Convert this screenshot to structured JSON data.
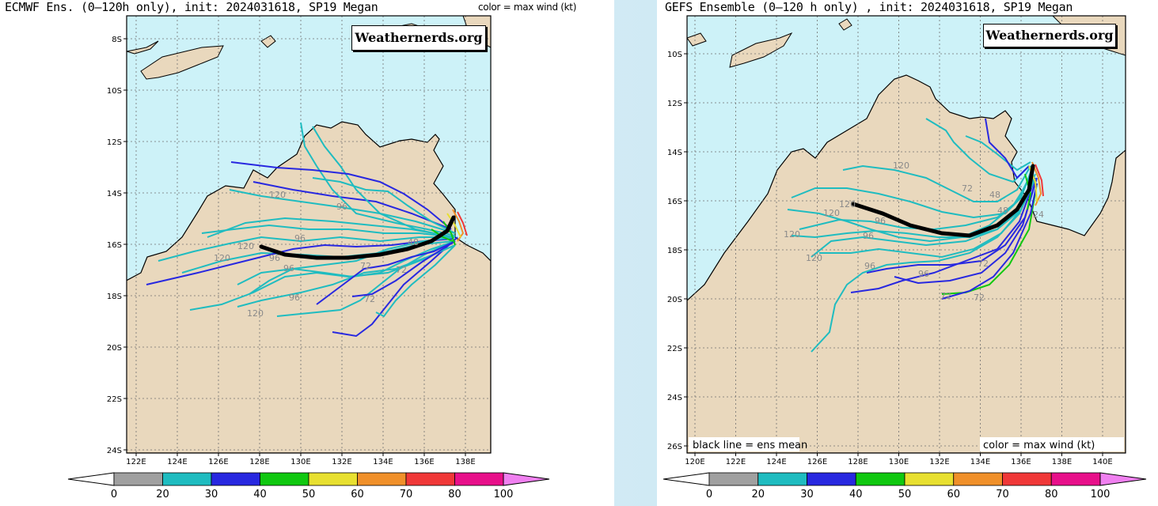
{
  "left_panel": {
    "title": "ECMWF Ens. (0–120h only), init: 2024031618, SP19 Megan",
    "legend_note": "color = max wind (kt)",
    "watermark": "Weathernerds.org",
    "lat_labels": [
      "8S",
      "10S",
      "12S",
      "14S",
      "16S",
      "18S",
      "20S",
      "22S",
      "24S"
    ],
    "lon_labels": [
      "122E",
      "124E",
      "126E",
      "128E",
      "130E",
      "132E",
      "134E",
      "136E",
      "138E"
    ],
    "hour_labels": [
      "120",
      "120",
      "120",
      "96",
      "96",
      "96",
      "96",
      "72",
      "72",
      "72",
      "48",
      "120",
      "96"
    ]
  },
  "right_panel": {
    "title": "GEFS Ensemble (0–120 h only) , init: 2024031618, SP19 Megan",
    "watermark": "Weathernerds.org",
    "mean_note": "black line = ens mean",
    "legend_note": "color = max wind (kt)",
    "lat_labels": [
      "10S",
      "12S",
      "14S",
      "16S",
      "18S",
      "20S",
      "22S",
      "24S",
      "26S"
    ],
    "lon_labels": [
      "120E",
      "122E",
      "124E",
      "126E",
      "128E",
      "130E",
      "132E",
      "134E",
      "136E",
      "138E",
      "140E"
    ],
    "hour_labels": [
      "120",
      "120",
      "120",
      "120",
      "96",
      "96",
      "96",
      "96",
      "72",
      "72",
      "72",
      "72",
      "48",
      "48",
      "24",
      "120"
    ]
  },
  "colorbar": {
    "ticks": [
      "0",
      "20",
      "30",
      "40",
      "50",
      "60",
      "70",
      "80",
      "100"
    ],
    "colors": [
      "#ffffff",
      "#a0a0a0",
      "#1fbcc0",
      "#2828e0",
      "#10c810",
      "#e8e030",
      "#f0902a",
      "#f03838",
      "#e8108a",
      "#f080f0"
    ]
  },
  "colors": {
    "ocean": "#cdf2f8",
    "land": "#e9d8bd",
    "coast": "#000000",
    "grid": "#707070"
  }
}
